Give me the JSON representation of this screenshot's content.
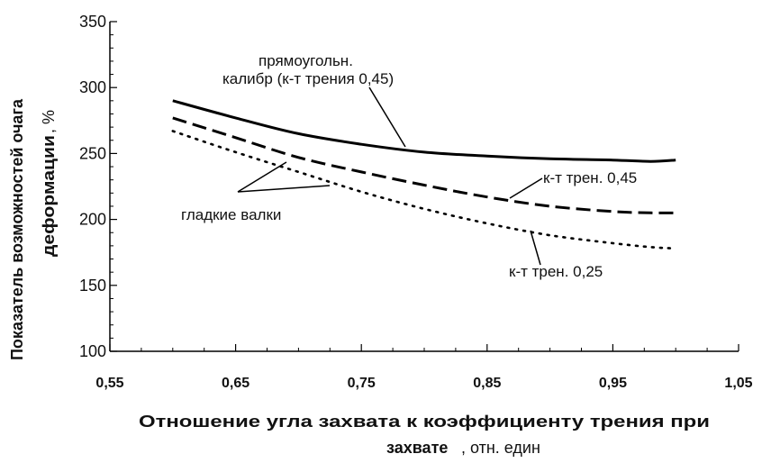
{
  "chart_data": {
    "type": "line",
    "xlabel_main": "Отношение угла захвата к коэффициенту трения при",
    "xlabel_second": "захвате",
    "xlabel_unit": ",  отн. един",
    "ylabel_line1": "Показатель возможностей очага",
    "ylabel_line2": "деформации",
    "ylabel_unit": ",  %",
    "xlim": [
      0.55,
      1.05
    ],
    "ylim": [
      100,
      350
    ],
    "xticks": [
      "0,55",
      "0,65",
      "0,75",
      "0,85",
      "0,95",
      "1,05"
    ],
    "yticks": [
      "100",
      "150",
      "200",
      "250",
      "300",
      "350"
    ],
    "grid": false,
    "series": [
      {
        "style": "solid",
        "x": [
          0.6,
          0.65,
          0.7,
          0.75,
          0.8,
          0.85,
          0.9,
          0.95,
          0.98,
          1.0
        ],
        "y": [
          290,
          277,
          265,
          257,
          251,
          248,
          246,
          245,
          244,
          245
        ]
      },
      {
        "style": "dashed",
        "x": [
          0.6,
          0.65,
          0.7,
          0.75,
          0.8,
          0.85,
          0.9,
          0.95,
          0.98,
          1.0
        ],
        "y": [
          277,
          262,
          247,
          236,
          226,
          217,
          210,
          206,
          205,
          205
        ]
      },
      {
        "style": "dotted",
        "x": [
          0.6,
          0.65,
          0.7,
          0.75,
          0.8,
          0.85,
          0.9,
          0.95,
          0.98,
          1.0
        ],
        "y": [
          267,
          251,
          236,
          221,
          208,
          197,
          188,
          182,
          179,
          178
        ]
      }
    ],
    "annotations": {
      "rect_line1": "прямоугольн.",
      "rect_line2": "калибр (к-т трения 0,45)",
      "smooth_rolls": "гладкие валки",
      "coef_045": "к-т трен. 0,45",
      "coef_025": "к-т трен. 0,25"
    }
  }
}
